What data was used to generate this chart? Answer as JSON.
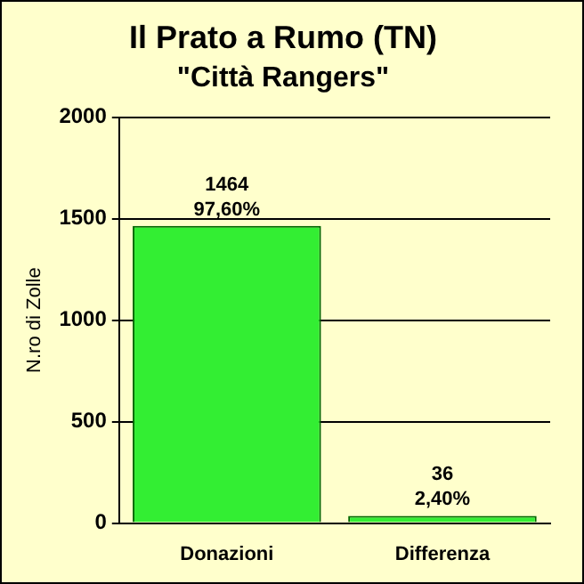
{
  "chart_data": {
    "type": "bar",
    "title": "Il Prato a Rumo (TN)",
    "subtitle": "\"Città Rangers\"",
    "ylabel": "N.ro di Zolle",
    "categories": [
      "Donazioni",
      "Differenza"
    ],
    "values": [
      1464,
      36
    ],
    "color": "#33ee33",
    "value_labels": [
      "1464\n97,60%",
      "36\n2,40%"
    ],
    "ylim": [
      0,
      2000
    ],
    "yticks": [
      0,
      500,
      1000,
      1500,
      2000
    ],
    "grid": "y",
    "legend": false
  }
}
